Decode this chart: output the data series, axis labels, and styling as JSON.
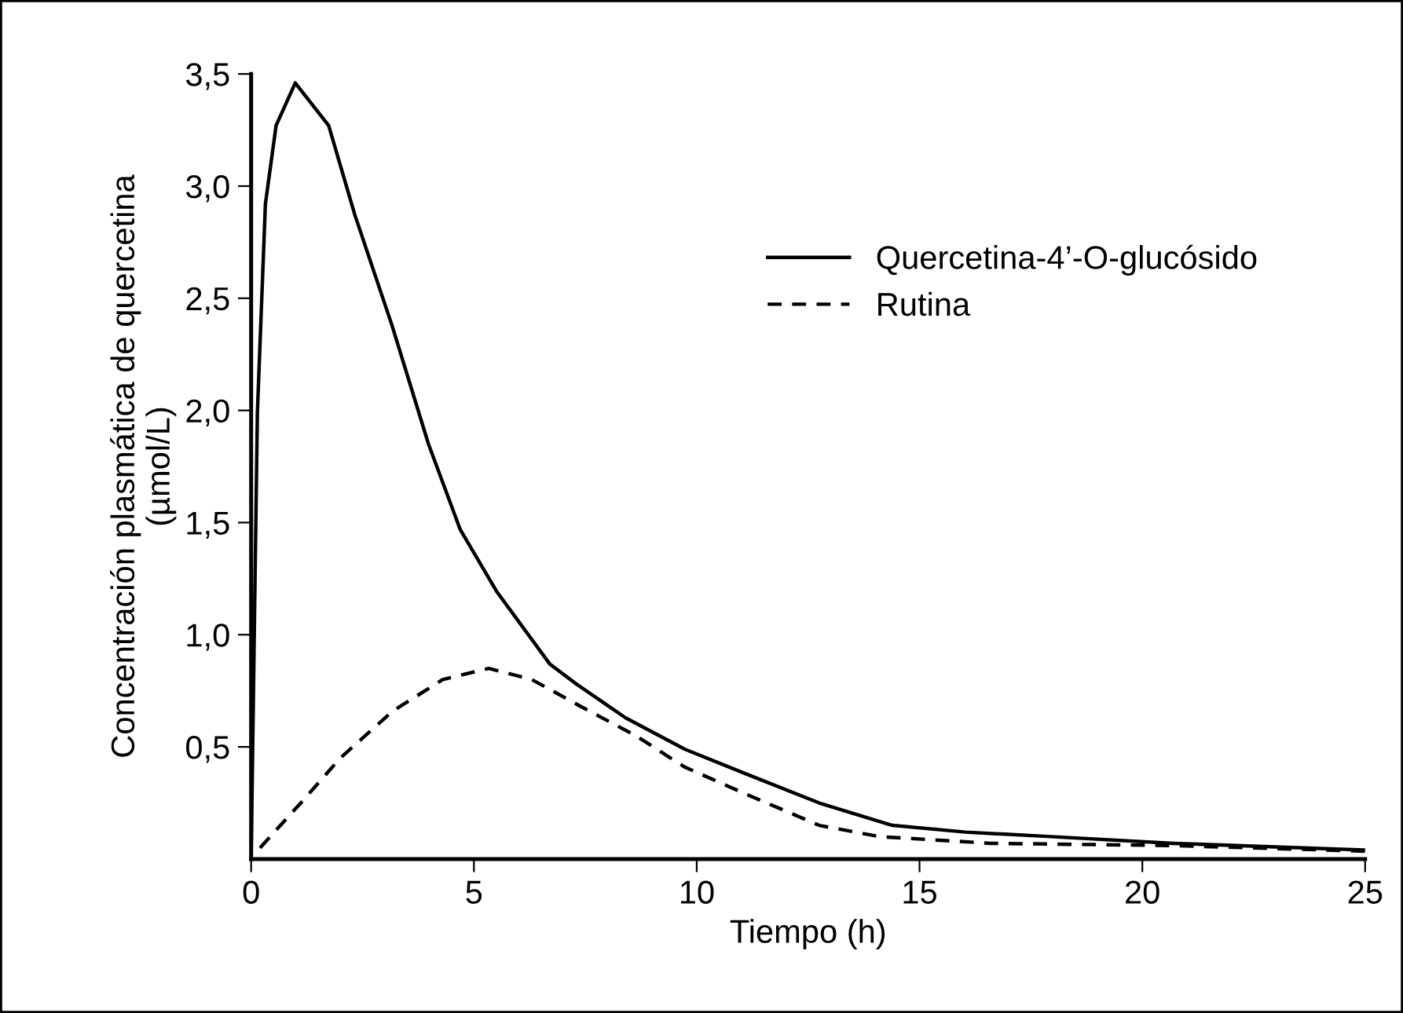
{
  "chart_data": {
    "type": "line",
    "xlabel": "Tiempo (h)",
    "ylabel": "Concentración plasmática de quercetina\n(µmol/L)",
    "series": [
      {
        "name": "Quercetina-4’-O-glucósido",
        "color": "#000000",
        "line_style": "solid",
        "x": [
          0,
          0.14,
          0.32,
          0.56,
          0.99,
          1.74,
          2.33,
          3.16,
          3.98,
          4.69,
          5.52,
          6.7,
          7.3,
          8.4,
          9.73,
          11.1,
          12.75,
          14.39,
          16.03,
          17.95,
          20.7,
          25
        ],
        "values": [
          0,
          1.99,
          2.92,
          3.27,
          3.46,
          3.27,
          2.87,
          2.38,
          1.85,
          1.47,
          1.19,
          0.87,
          0.78,
          0.63,
          0.49,
          0.38,
          0.25,
          0.15,
          0.12,
          0.1,
          0.07,
          0.04
        ]
      },
      {
        "name": "Rutina",
        "color": "#000000",
        "line_style": "dashed",
        "x": [
          0.2,
          1.16,
          2.0,
          3.18,
          4.3,
          5.33,
          6.3,
          7.4,
          8.63,
          9.73,
          11.1,
          12.75,
          14.1,
          16.6,
          20.7,
          25
        ],
        "values": [
          0.05,
          0.26,
          0.45,
          0.66,
          0.8,
          0.85,
          0.8,
          0.68,
          0.55,
          0.41,
          0.29,
          0.15,
          0.1,
          0.07,
          0.06,
          0.035
        ]
      }
    ],
    "xlim": [
      0,
      25
    ],
    "xticks": [
      0,
      5,
      10,
      15,
      20,
      25
    ],
    "ylim": [
      0,
      3.5
    ],
    "yticks": [
      {
        "value": 0.5,
        "label": "0,5"
      },
      {
        "value": 1.0,
        "label": "1,0"
      },
      {
        "value": 1.5,
        "label": "1,5"
      },
      {
        "value": 2.0,
        "label": "2,0"
      },
      {
        "value": 2.5,
        "label": "2,5"
      },
      {
        "value": 3.0,
        "label": "3,0"
      },
      {
        "value": 3.5,
        "label": "3,5"
      }
    ],
    "grid": false,
    "legend": "top right",
    "marker": "none"
  }
}
